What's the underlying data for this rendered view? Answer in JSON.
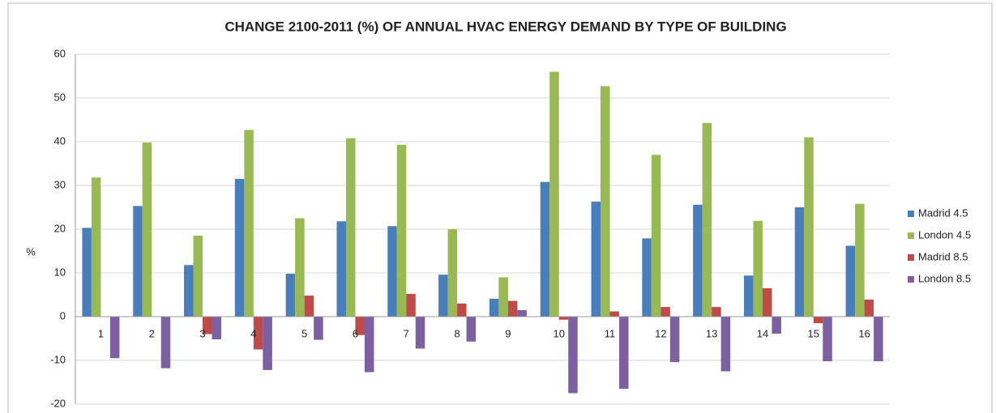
{
  "chart_data": {
    "type": "bar",
    "title": "CHANGE 2100-2011 (%) OF ANNUAL HVAC ENERGY DEMAND  BY TYPE OF BUILDING",
    "ylabel": "%",
    "categories": [
      "1",
      "2",
      "3",
      "4",
      "5",
      "6",
      "7",
      "8",
      "9",
      "10",
      "11",
      "12",
      "13",
      "14",
      "15",
      "16"
    ],
    "series": [
      {
        "name": "Madrid 4.5",
        "color": "#4a7ebb",
        "values": [
          20.3,
          25.3,
          11.8,
          31.5,
          9.8,
          21.8,
          20.7,
          9.6,
          4.1,
          30.8,
          26.3,
          17.9,
          25.6,
          9.4,
          25,
          16.2
        ]
      },
      {
        "name": "London 4.5",
        "color": "#98b954",
        "values": [
          31.8,
          39.8,
          18.5,
          42.7,
          22.5,
          40.8,
          39.3,
          20,
          9,
          56,
          52.7,
          37,
          44.3,
          21.9,
          41,
          25.8
        ]
      },
      {
        "name": "Madrid 8.5",
        "color": "#be4b48",
        "values": [
          0,
          0,
          -4,
          -7.5,
          4.8,
          -4.2,
          5.2,
          3,
          3.6,
          -0.7,
          1.2,
          2.2,
          2.2,
          6.5,
          -1.5,
          3.9
        ]
      },
      {
        "name": "London 8.5",
        "color": "#7d60a0",
        "values": [
          -9.5,
          -11.8,
          -5.2,
          -12.2,
          -5.3,
          -12.7,
          -7.3,
          -5.7,
          1.5,
          -17.5,
          -16.5,
          -10.4,
          -12.5,
          -3.9,
          -10.2,
          -10.2
        ]
      }
    ],
    "ylim": [
      -20,
      60
    ],
    "yticks": [
      -20,
      -10,
      0,
      10,
      20,
      30,
      40,
      50,
      60
    ],
    "grid": true,
    "legend": "right"
  }
}
